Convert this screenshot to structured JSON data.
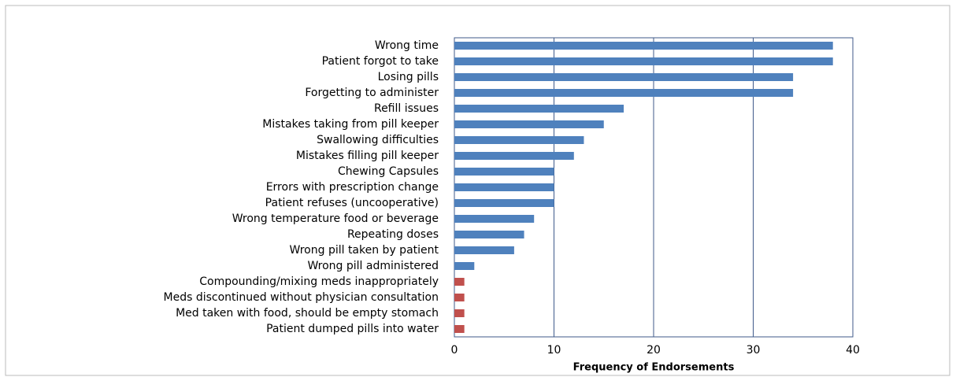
{
  "chart_data": {
    "type": "barh",
    "categories": [
      "Wrong time",
      "Patient forgot to take",
      "Losing pills",
      "Forgetting to administer",
      "Refill issues",
      "Mistakes taking from pill keeper",
      "Swallowing difficulties",
      "Mistakes filling pill keeper",
      "Chewing Capsules",
      "Errors with prescription change",
      "Patient refuses (uncooperative)",
      "Wrong temperature food or beverage",
      "Repeating doses",
      "Wrong pill taken by patient",
      "Wrong pill administered",
      "Compounding/mixing meds inappropriately",
      "Meds discontinued without physician consultation",
      "Med taken with food, should be empty stomach",
      "Patient dumped pills into water"
    ],
    "values": [
      38,
      38,
      34,
      34,
      17,
      15,
      13,
      12,
      10,
      10,
      10,
      8,
      7,
      6,
      2,
      1,
      1,
      1,
      1
    ],
    "colors": [
      "#4f81bd",
      "#4f81bd",
      "#4f81bd",
      "#4f81bd",
      "#4f81bd",
      "#4f81bd",
      "#4f81bd",
      "#4f81bd",
      "#4f81bd",
      "#4f81bd",
      "#4f81bd",
      "#4f81bd",
      "#4f81bd",
      "#4f81bd",
      "#4f81bd",
      "#c0504d",
      "#c0504d",
      "#c0504d",
      "#c0504d"
    ],
    "x_label": "Frequency of Endorsements",
    "xlim": [
      0,
      40
    ],
    "xticks": [
      0,
      10,
      20,
      30,
      40
    ],
    "grid": true
  }
}
